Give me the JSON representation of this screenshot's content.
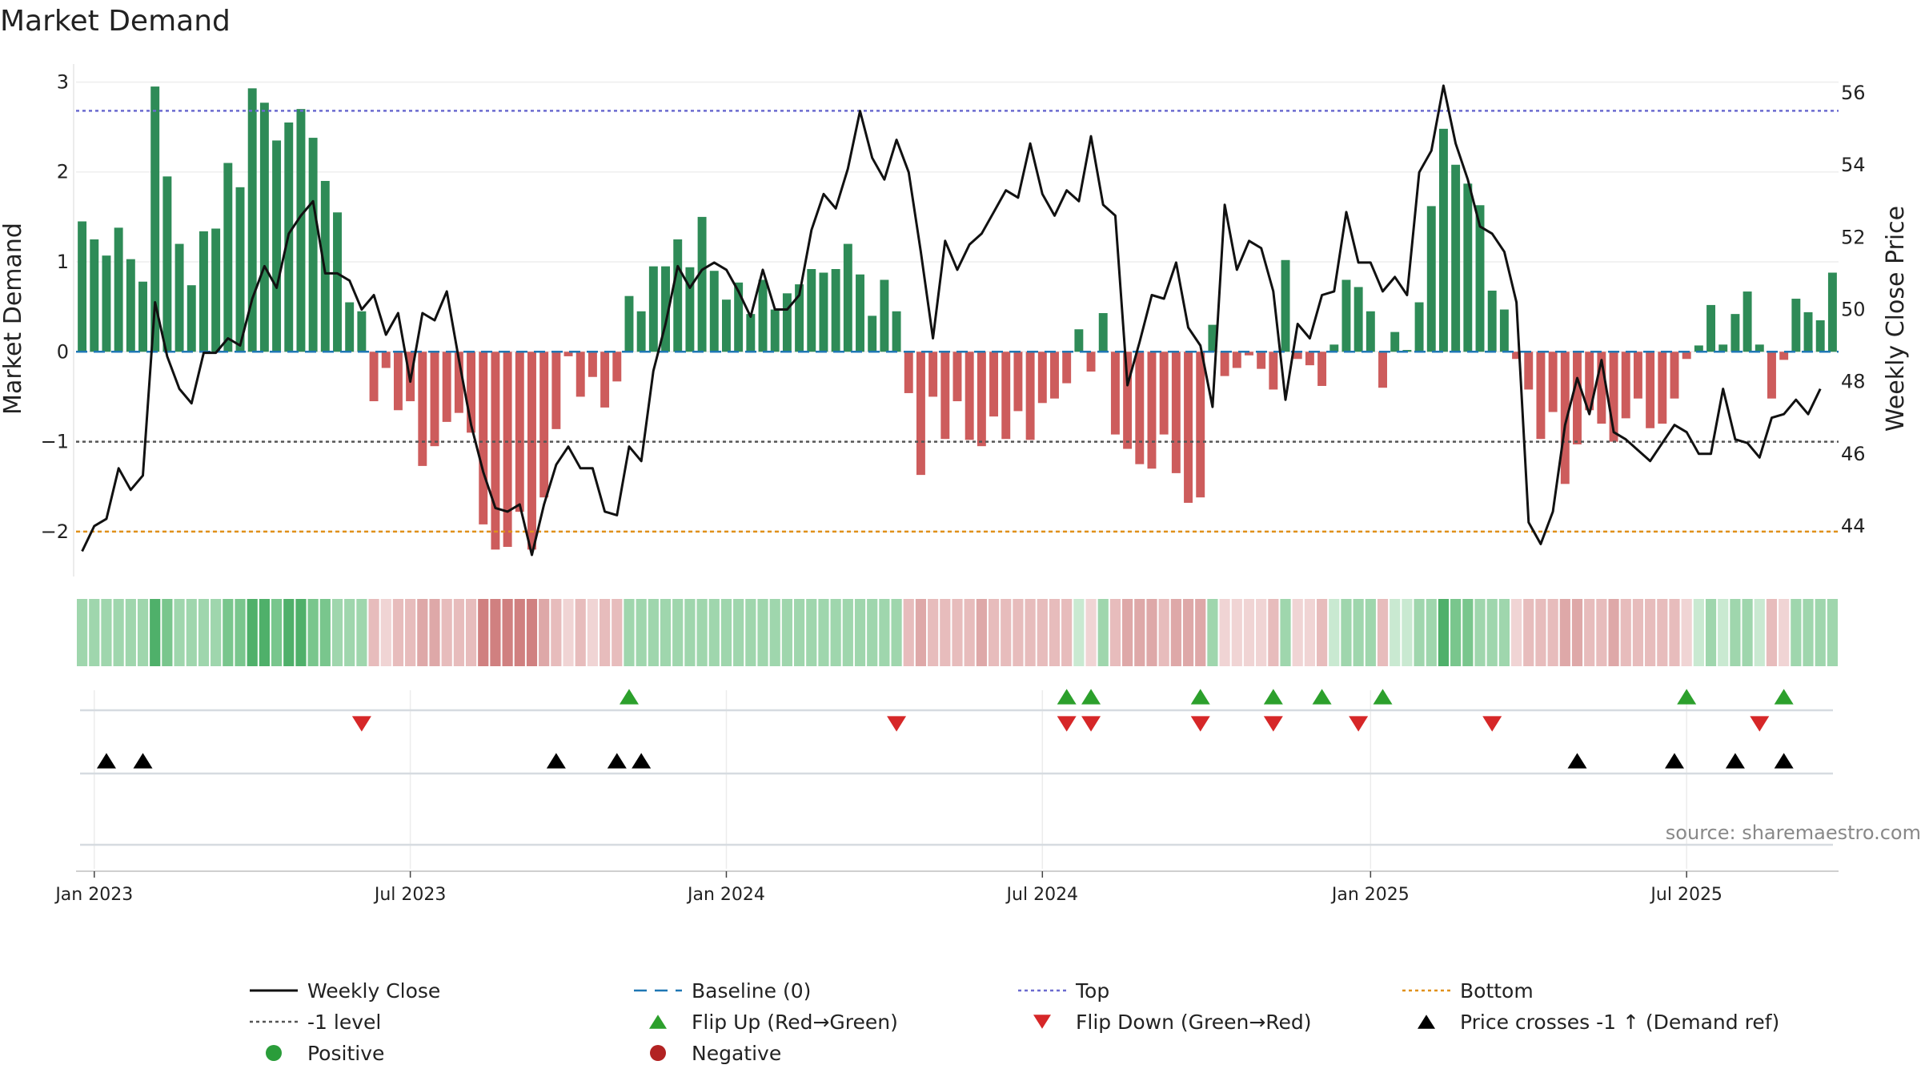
{
  "chart_data": {
    "type": "bar",
    "title": "Market Demand",
    "ylabel": "Market Demand",
    "y2label": "Weekly Close Price",
    "ylim": [
      -2.5,
      3.2
    ],
    "y2lim": [
      42.6,
      56.8
    ],
    "yticks": [
      -2,
      -1,
      0,
      1,
      2,
      3
    ],
    "yticklabels": [
      "−2",
      "−1",
      "0",
      "1",
      "2",
      "3"
    ],
    "y2ticks": [
      44,
      46,
      48,
      50,
      52,
      54,
      56
    ],
    "xticks": [
      "Jan 2023",
      "Jul 2023",
      "Jan 2024",
      "Jul 2024",
      "Jan 2025",
      "Jul 2025"
    ],
    "xtick_weeks": [
      1,
      27,
      53,
      79,
      106,
      132
    ],
    "reference_lines": {
      "top": 2.68,
      "minus_one": -1,
      "bottom": -2,
      "baseline": 0
    },
    "demand": [
      1.45,
      1.25,
      1.07,
      1.38,
      1.03,
      0.78,
      2.95,
      1.95,
      1.2,
      0.74,
      1.34,
      1.37,
      2.1,
      1.83,
      2.93,
      2.77,
      2.35,
      2.55,
      2.7,
      2.38,
      1.9,
      1.55,
      0.55,
      0.45,
      -0.55,
      -0.18,
      -0.65,
      -0.55,
      -1.27,
      -1.05,
      -0.78,
      -0.68,
      -0.9,
      -1.92,
      -2.2,
      -2.17,
      -1.78,
      -2.2,
      -1.62,
      -0.86,
      -0.05,
      -0.5,
      -0.28,
      -0.62,
      -0.33,
      0.62,
      0.45,
      0.95,
      0.95,
      1.25,
      0.94,
      1.5,
      0.9,
      0.58,
      0.77,
      0.42,
      0.8,
      0.47,
      0.65,
      0.75,
      0.92,
      0.88,
      0.92,
      1.2,
      0.86,
      0.4,
      0.8,
      0.45,
      -0.46,
      -1.37,
      -0.5,
      -0.97,
      -0.55,
      -0.98,
      -1.05,
      -0.72,
      -0.97,
      -0.66,
      -0.98,
      -0.57,
      -0.52,
      -0.35,
      0.25,
      -0.22,
      0.43,
      -0.92,
      -1.08,
      -1.25,
      -1.3,
      -0.92,
      -1.35,
      -1.68,
      -1.62,
      0.3,
      -0.27,
      -0.18,
      -0.04,
      -0.19,
      -0.42,
      1.02,
      -0.08,
      -0.15,
      -0.38,
      0.08,
      0.8,
      0.72,
      0.45,
      -0.4,
      0.22,
      0.02,
      0.55,
      1.62,
      2.48,
      2.08,
      1.87,
      1.63,
      0.68,
      0.47,
      -0.08,
      -0.42,
      -0.97,
      -0.67,
      -1.47,
      -1.03,
      -0.65,
      -0.8,
      -1.0,
      -0.74,
      -0.52,
      -0.85,
      -0.8,
      -0.52,
      -0.08,
      0.07,
      0.52,
      0.08,
      0.42,
      0.67,
      0.08,
      -0.52,
      -0.09,
      0.59,
      0.44,
      0.35,
      0.88
    ],
    "close": [
      43.3,
      44.0,
      44.2,
      45.6,
      45.0,
      45.4,
      50.2,
      48.7,
      47.8,
      47.4,
      48.8,
      48.8,
      49.2,
      49.0,
      50.3,
      51.2,
      50.6,
      52.1,
      52.6,
      53.0,
      51.0,
      51.0,
      50.8,
      50.0,
      50.4,
      49.3,
      49.9,
      48.0,
      49.9,
      49.7,
      50.5,
      48.6,
      46.8,
      45.5,
      44.5,
      44.4,
      44.6,
      43.2,
      44.6,
      45.7,
      46.2,
      45.6,
      45.6,
      44.4,
      44.3,
      46.2,
      45.8,
      48.3,
      49.6,
      51.2,
      50.6,
      51.1,
      51.3,
      51.1,
      50.5,
      49.8,
      51.1,
      50.0,
      50.0,
      50.4,
      52.2,
      53.2,
      52.8,
      53.9,
      55.5,
      54.2,
      53.6,
      54.7,
      53.8,
      51.6,
      49.2,
      51.9,
      51.1,
      51.8,
      52.1,
      52.7,
      53.3,
      53.1,
      54.6,
      53.2,
      52.6,
      53.3,
      53.0,
      54.8,
      52.9,
      52.6,
      47.9,
      49.1,
      50.4,
      50.3,
      51.3,
      49.5,
      49.0,
      47.3,
      52.9,
      51.1,
      51.9,
      51.7,
      50.5,
      47.5,
      49.6,
      49.2,
      50.4,
      50.5,
      52.7,
      51.3,
      51.3,
      50.5,
      50.9,
      50.4,
      53.8,
      54.4,
      56.2,
      54.6,
      53.6,
      52.3,
      52.1,
      51.6,
      50.2,
      44.1,
      43.5,
      44.4,
      46.8,
      48.1,
      47.1,
      48.6,
      46.6,
      46.4,
      46.1,
      45.8,
      46.3,
      46.8,
      46.6,
      46.0,
      46.0,
      47.8,
      46.4,
      46.3,
      45.9,
      47.0,
      47.1,
      47.5,
      47.1,
      47.8
    ],
    "flip_up_weeks": [
      45,
      81,
      83,
      92,
      98,
      102,
      107,
      132,
      140
    ],
    "flip_down_weeks": [
      23,
      67,
      81,
      83,
      92,
      98,
      105,
      116,
      138
    ],
    "price_cross_weeks": [
      2,
      5,
      39,
      44,
      46,
      123,
      131,
      136,
      140
    ],
    "source": "source: sharemaestro.com",
    "legend": [
      {
        "key": "close",
        "label": "Weekly Close",
        "color": "#111111"
      },
      {
        "key": "baseline",
        "label": "Baseline (0)",
        "color": "#1f77b4"
      },
      {
        "key": "top",
        "label": "Top",
        "color": "#6a6acf"
      },
      {
        "key": "bottom",
        "label": "Bottom",
        "color": "#e0901a"
      },
      {
        "key": "minus_one",
        "label": "-1 level",
        "color": "#555555"
      },
      {
        "key": "flip_up",
        "label": "Flip Up (Red→Green)",
        "color": "#2ca02c"
      },
      {
        "key": "flip_down",
        "label": "Flip Down (Green→Red)",
        "color": "#d62728"
      },
      {
        "key": "cross",
        "label": "Price crosses -1 ↑ (Demand ref)",
        "color": "#000000"
      },
      {
        "key": "positive",
        "label": "Positive",
        "color": "#2a9d3a"
      },
      {
        "key": "negative",
        "label": "Negative",
        "color": "#b22222"
      }
    ]
  },
  "colors": {
    "positive_bar": "#2e8b57",
    "negative_bar": "#cd5c5c",
    "close_line": "#111111",
    "top_line": "#6a6acf",
    "bottom_line": "#e0901a",
    "minus_one_line": "#555555",
    "baseline_line": "#1f77b4"
  }
}
